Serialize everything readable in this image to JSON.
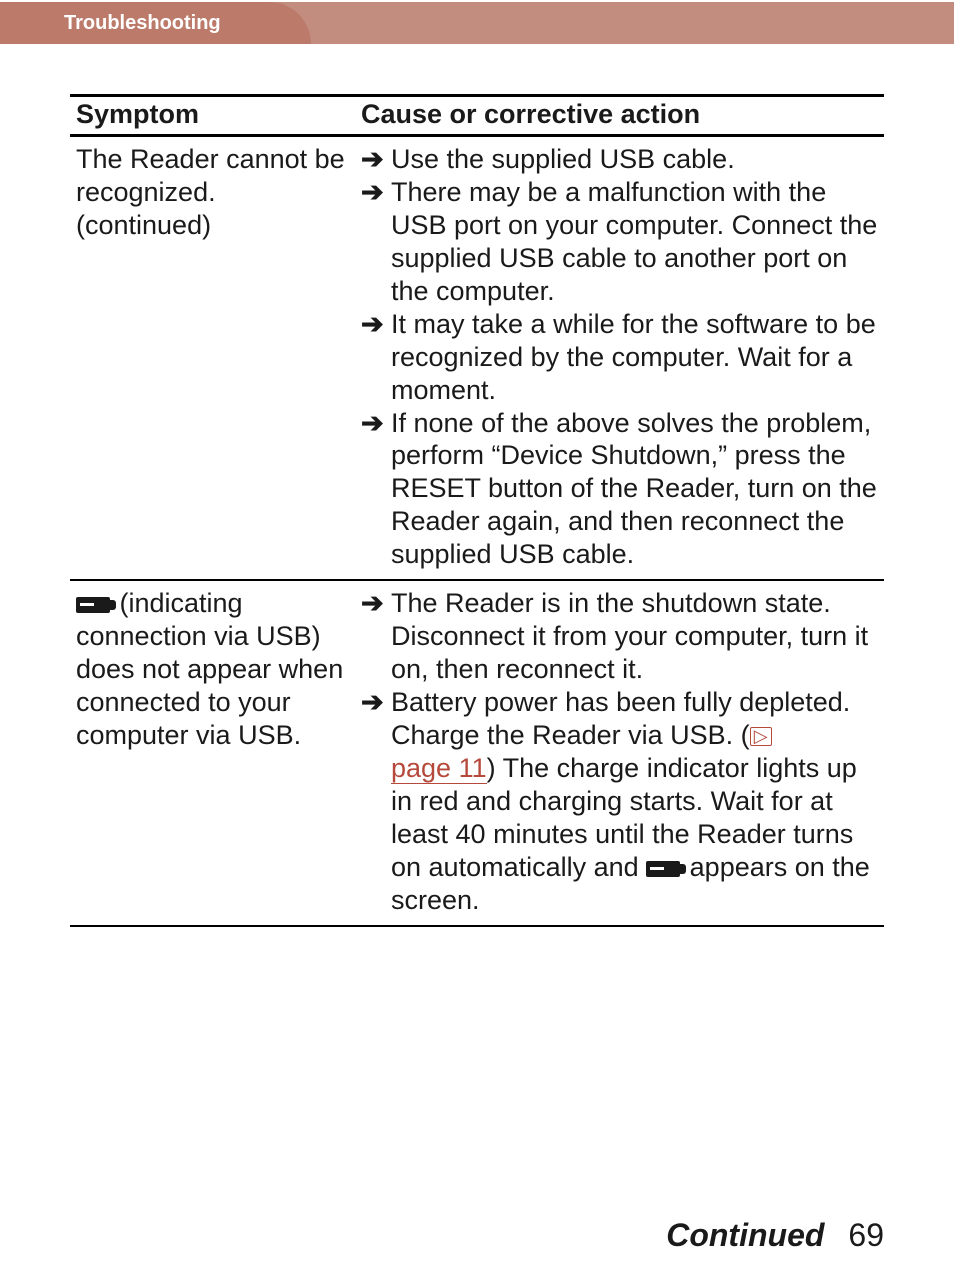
{
  "header": {
    "section_title": "Troubleshooting"
  },
  "table": {
    "columns": {
      "symptom": "Symptom",
      "action": "Cause or corrective action"
    },
    "rows": [
      {
        "symptom": "The Reader cannot be recognized. (continued)",
        "actions": [
          "Use the supplied USB cable.",
          "There may be a malfunction with the USB port on your computer. Connect the supplied USB cable to another port on the computer.",
          "It may take a while for the software to be recognized by the computer. Wait for a moment.",
          "If none of the above solves the problem, perform “Device Shutdown,” press the RESET button of the Reader, turn on the Reader again, and then reconnect the supplied USB cable."
        ]
      },
      {
        "symptom_parts": {
          "pre_icon": "",
          "post_icon": " (indicating connection via USB) does not appear when connected to your computer via USB."
        },
        "actions_rich": [
          {
            "type": "plain",
            "text": "The Reader is in the shutdown state. Disconnect it from your computer, turn it on, then reconnect it."
          },
          {
            "type": "rich",
            "segments": {
              "a": "Battery power has been fully depleted. Charge the Reader via USB. (",
              "ref": "page 11",
              "b": ") The charge indicator lights up in red and charging starts. Wait for at least 40 minutes until the Reader turns on automatically and ",
              "c": " appears on the screen."
            }
          }
        ]
      }
    ]
  },
  "footer": {
    "continued": "Continued",
    "page_number": "69"
  },
  "colors": {
    "tab_bg": "#bc7b6a",
    "bar_bg": "#c28c7f",
    "link": "#b5493c"
  }
}
